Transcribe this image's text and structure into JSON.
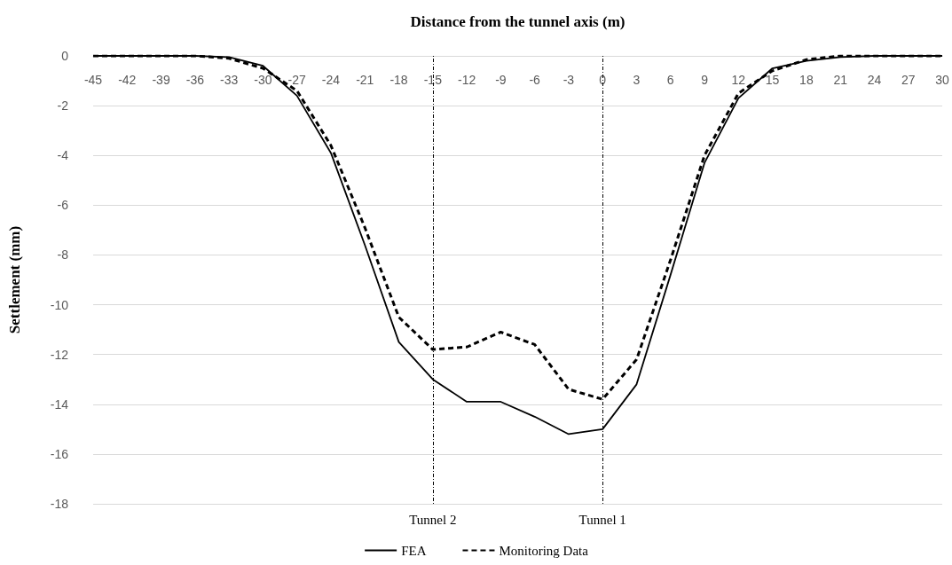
{
  "chart_data": {
    "type": "line",
    "xlabel": "Distance from the tunnel axis (m)",
    "ylabel": "Settlement (mm)",
    "categories": [
      "-45",
      "-42",
      "-39",
      "-36",
      "-33",
      "-30",
      "-27",
      "-24",
      "-21",
      "-18",
      "-15",
      "-12",
      "-9",
      "-6",
      "-3",
      "0",
      "3",
      "6",
      "9",
      "12",
      "15",
      "18",
      "21",
      "24",
      "27",
      "30"
    ],
    "series": [
      {
        "name": "FEA",
        "color": "#000000",
        "line_style": "solid",
        "values": [
          0,
          0,
          0,
          0,
          -0.05,
          -0.4,
          -1.6,
          -3.9,
          -7.6,
          -11.5,
          -13.0,
          -13.9,
          -13.9,
          -14.5,
          -15.2,
          -15.0,
          -13.2,
          -8.8,
          -4.3,
          -1.7,
          -0.5,
          -0.2,
          -0.05,
          0,
          0,
          0
        ]
      },
      {
        "name": "Monitoring Data",
        "color": "#000000",
        "line_style": "dashed",
        "values": [
          0,
          0,
          0,
          0,
          -0.1,
          -0.5,
          -1.4,
          -3.6,
          -6.9,
          -10.5,
          -11.8,
          -11.7,
          -11.1,
          -11.6,
          -13.4,
          -13.8,
          -12.2,
          -8.2,
          -4.0,
          -1.5,
          -0.6,
          -0.15,
          0,
          0,
          0,
          0
        ]
      }
    ],
    "ylim": [
      -18,
      0
    ],
    "yticks": [
      -18,
      -16,
      -14,
      -12,
      -10,
      -8,
      -6,
      -4,
      -2,
      0
    ],
    "grid": "y",
    "legend": "bottom",
    "marker": "none",
    "ref_lines": [
      {
        "axis": "x",
        "value": "-15",
        "label": "Tunnel 2",
        "line_style": "dotted"
      },
      {
        "axis": "x",
        "value": "0",
        "label": "Tunnel 1",
        "line_style": "dotted"
      }
    ]
  }
}
